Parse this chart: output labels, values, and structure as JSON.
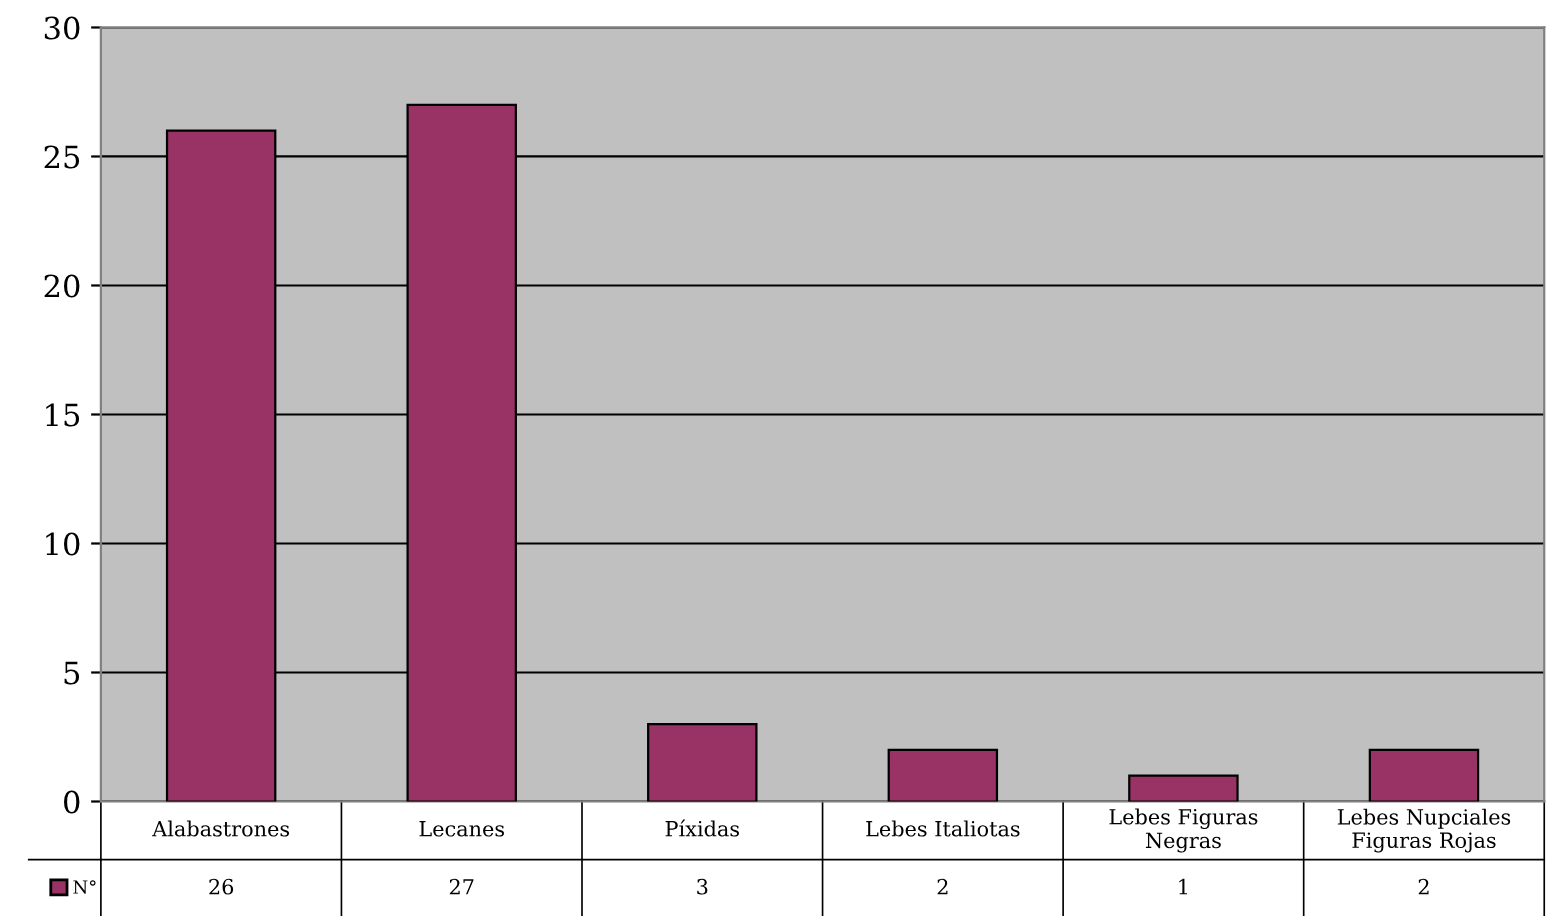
{
  "chart_data": {
    "type": "bar",
    "categories": [
      "Alabastrones",
      "Lecanes",
      "Píxidas",
      "Lebes Italiotas",
      "Lebes Figuras Negras",
      "Lebes Nupciales Figuras Rojas"
    ],
    "series": [
      {
        "name": "N°",
        "color": "#993366",
        "values": [
          26,
          27,
          3,
          2,
          1,
          2
        ]
      }
    ],
    "ylim": [
      0,
      30
    ],
    "yticks": [
      0,
      5,
      10,
      15,
      20,
      25,
      30
    ],
    "grid": "y",
    "legend": "bottom left",
    "data_labels": true
  }
}
